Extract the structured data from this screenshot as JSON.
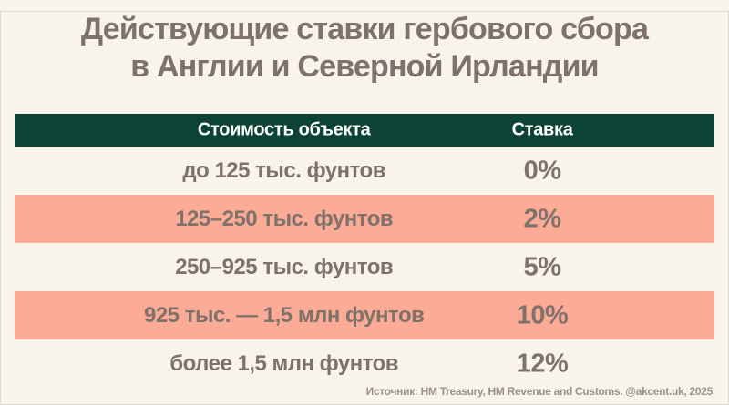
{
  "title": {
    "line1": "Действующие ставки гербового сбора",
    "line2": "в Англии и Северной Ирландии"
  },
  "colors": {
    "background": "#f8f4ec",
    "header_green": "#0c4335",
    "highlight_salmon": "#fcab96",
    "text_taupe": "#7e726b",
    "header_text": "#ffffff",
    "source_gray": "#9b9188"
  },
  "chart_data": {
    "type": "table",
    "title": "Действующие ставки гербового сбора в Англии и Северной Ирландии",
    "columns": [
      "Стоимость объекта",
      "Ставка"
    ],
    "rows": [
      [
        "до 125 тыс. фунтов",
        "0%"
      ],
      [
        "125–250 тыс. фунтов",
        "2%"
      ],
      [
        "250–925 тыс. фунтов",
        "5%"
      ],
      [
        "925 тыс. — 1,5 млн фунтов",
        "10%"
      ],
      [
        "более 1,5 млн фунтов",
        "12%"
      ]
    ],
    "rates_numeric_percent": [
      0,
      2,
      5,
      10,
      12
    ],
    "layout_hints": {
      "highlighted_row_indices": [
        1,
        3
      ],
      "header_style": "dark-green band, white text",
      "row_stripe_style": "alternating cream / salmon"
    },
    "source": "Источник: HM Treasury, HM Revenue and Customs. @akcent.uk, 2025"
  }
}
